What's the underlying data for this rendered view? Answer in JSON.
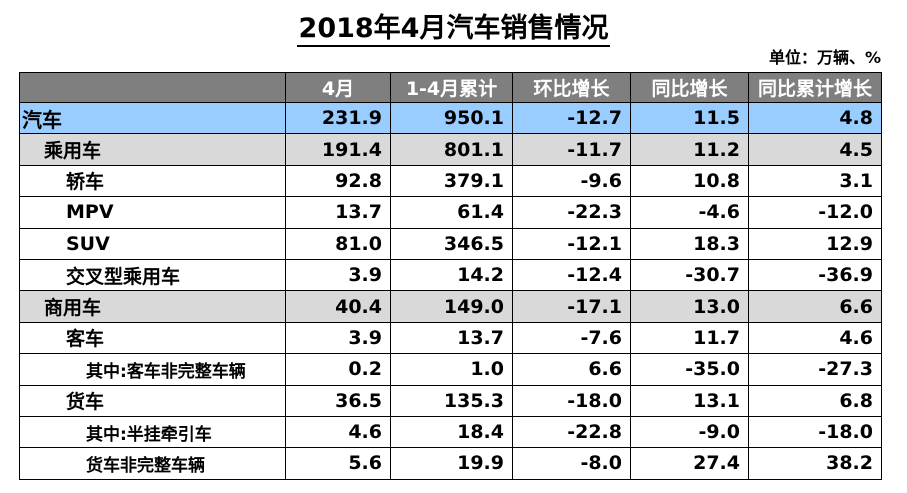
{
  "title": "2018年4月汽车销售情况",
  "unit": "单位：万辆、%",
  "columns": [
    "",
    "4月",
    "1-4月累计",
    "环比增长",
    "同比增长",
    "同比累计增长"
  ],
  "rows": [
    {
      "name": "汽车",
      "level": 0,
      "values": [
        "231.9",
        "950.1",
        "-12.7",
        "11.5",
        "4.8"
      ]
    },
    {
      "name": "乘用车",
      "level": 1,
      "values": [
        "191.4",
        "801.1",
        "-11.7",
        "11.2",
        "4.5"
      ]
    },
    {
      "name": "轿车",
      "level": 2,
      "values": [
        "92.8",
        "379.1",
        "-9.6",
        "10.8",
        "3.1"
      ]
    },
    {
      "name": "MPV",
      "level": 2,
      "values": [
        "13.7",
        "61.4",
        "-22.3",
        "-4.6",
        "-12.0"
      ]
    },
    {
      "name": "SUV",
      "level": 2,
      "values": [
        "81.0",
        "346.5",
        "-12.1",
        "18.3",
        "12.9"
      ]
    },
    {
      "name": "交叉型乘用车",
      "level": 2,
      "values": [
        "3.9",
        "14.2",
        "-12.4",
        "-30.7",
        "-36.9"
      ]
    },
    {
      "name": "商用车",
      "level": 1,
      "values": [
        "40.4",
        "149.0",
        "-17.1",
        "13.0",
        "6.6"
      ]
    },
    {
      "name": "客车",
      "level": 2,
      "values": [
        "3.9",
        "13.7",
        "-7.6",
        "11.7",
        "4.6"
      ]
    },
    {
      "name": "其中:客车非完整车辆",
      "level": 3,
      "values": [
        "0.2",
        "1.0",
        "6.6",
        "-35.0",
        "-27.3"
      ]
    },
    {
      "name": "货车",
      "level": 2,
      "values": [
        "36.5",
        "135.3",
        "-18.0",
        "13.1",
        "6.8"
      ]
    },
    {
      "name": "其中:半挂牵引车",
      "level": 3,
      "values": [
        "4.6",
        "18.4",
        "-22.8",
        "-9.0",
        "-18.0"
      ]
    },
    {
      "name": "货车非完整车辆",
      "level": 3,
      "values": [
        "5.6",
        "19.9",
        "-8.0",
        "27.4",
        "38.2"
      ]
    }
  ],
  "chart_data": {
    "type": "table",
    "title": "2018年4月汽车销售情况",
    "unit": "单位：万辆、%",
    "columns": [
      "",
      "4月",
      "1-4月累计",
      "环比增长",
      "同比增长",
      "同比累计增长"
    ],
    "rows": [
      [
        "汽车",
        231.9,
        950.1,
        -12.7,
        11.5,
        4.8
      ],
      [
        "乘用车",
        191.4,
        801.1,
        -11.7,
        11.2,
        4.5
      ],
      [
        "轿车",
        92.8,
        379.1,
        -9.6,
        10.8,
        3.1
      ],
      [
        "MPV",
        13.7,
        61.4,
        -22.3,
        -4.6,
        -12.0
      ],
      [
        "SUV",
        81.0,
        346.5,
        -12.1,
        18.3,
        12.9
      ],
      [
        "交叉型乘用车",
        3.9,
        14.2,
        -12.4,
        -30.7,
        -36.9
      ],
      [
        "商用车",
        40.4,
        149.0,
        -17.1,
        13.0,
        6.6
      ],
      [
        "客车",
        3.9,
        13.7,
        -7.6,
        11.7,
        4.6
      ],
      [
        "其中:客车非完整车辆",
        0.2,
        1.0,
        6.6,
        -35.0,
        -27.3
      ],
      [
        "货车",
        36.5,
        135.3,
        -18.0,
        13.1,
        6.8
      ],
      [
        "其中:半挂牵引车",
        4.6,
        18.4,
        -22.8,
        -9.0,
        -18.0
      ],
      [
        "货车非完整车辆",
        5.6,
        19.9,
        -8.0,
        27.4,
        38.2
      ]
    ]
  }
}
